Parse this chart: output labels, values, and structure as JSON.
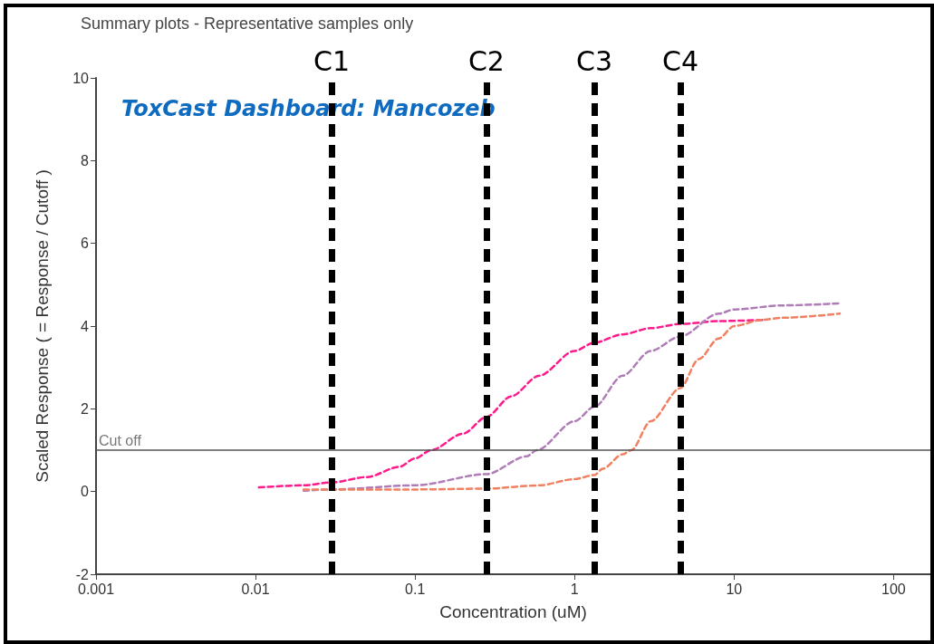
{
  "chart_data": {
    "type": "line",
    "title": "Summary plots - Representative samples only",
    "xlabel": "Concentration (uM)",
    "ylabel": "Scaled Response ( = Response / Cutoff )",
    "annotations": [
      "ToxCast Dashboard: Mancozeb"
    ],
    "log": "x",
    "xlim": [
      0.001,
      170
    ],
    "xticks": [
      0.001,
      0.01,
      0.1,
      1,
      10,
      100
    ],
    "ylim": [
      -2,
      10
    ],
    "yticks": [
      -2,
      0,
      2,
      4,
      6,
      8,
      10
    ],
    "grid": false,
    "marker": "none",
    "line_style": "dashed",
    "series": [
      {
        "color": "#ff1a8c",
        "x": [
          0.0105,
          0.02,
          0.03,
          0.05,
          0.08,
          0.1,
          0.126,
          0.2,
          0.28,
          0.4,
          0.6,
          1,
          1.33,
          2,
          3,
          4.6,
          8,
          15
        ],
        "values": [
          0.1,
          0.15,
          0.22,
          0.35,
          0.6,
          0.8,
          1.0,
          1.4,
          1.8,
          2.3,
          2.8,
          3.4,
          3.6,
          3.8,
          3.95,
          4.05,
          4.12,
          4.15
        ]
      },
      {
        "color": "#b07cb8",
        "x": [
          0.02,
          0.03,
          0.1,
          0.28,
          0.5,
          0.58,
          1,
          1.33,
          2,
          3,
          4.6,
          8,
          10,
          20,
          46
        ],
        "values": [
          0.02,
          0.05,
          0.15,
          0.42,
          0.85,
          1.0,
          1.7,
          2.05,
          2.8,
          3.4,
          3.75,
          4.3,
          4.4,
          4.5,
          4.55
        ]
      },
      {
        "color": "#f08060",
        "x": [
          0.02,
          0.1,
          0.28,
          0.6,
          1,
          1.33,
          1.5,
          2,
          2.27,
          3,
          4.6,
          6,
          8,
          10,
          15,
          20,
          46
        ],
        "values": [
          0.05,
          0.05,
          0.07,
          0.15,
          0.3,
          0.4,
          0.55,
          0.9,
          1.0,
          1.7,
          2.5,
          3.2,
          3.7,
          4.0,
          4.15,
          4.2,
          4.3
        ]
      }
    ],
    "ref_lines": [
      {
        "axis": "y",
        "value": 1,
        "label": "Cut off",
        "color": "#555555",
        "line_style": "solid"
      },
      {
        "axis": "x",
        "value": 0.03,
        "label": "C1",
        "color": "#000000",
        "line_style": "dashed"
      },
      {
        "axis": "x",
        "value": 0.28,
        "label": "C2",
        "color": "#000000",
        "line_style": "dashed"
      },
      {
        "axis": "x",
        "value": 1.33,
        "label": "C3",
        "color": "#000000",
        "line_style": "dashed"
      },
      {
        "axis": "x",
        "value": 4.6,
        "label": "C4",
        "color": "#000000",
        "line_style": "dashed"
      }
    ]
  }
}
